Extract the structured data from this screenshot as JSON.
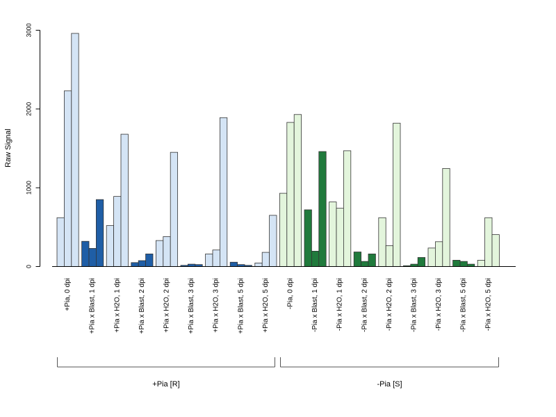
{
  "chart_data": {
    "type": "bar",
    "ylabel": "Raw Signal",
    "xlabel": "",
    "ylim": [
      0,
      3000
    ],
    "yticks": [
      "0",
      "1000",
      "2000",
      "3000"
    ],
    "grid": false,
    "bars_per_category": 3,
    "colors": {
      "r_light": "#d4e4f5",
      "r_dark": "#1f5ea6",
      "s_light": "#e3f5dc",
      "s_dark": "#207a3c",
      "outline": "#333333"
    },
    "categories": [
      {
        "label": "+Pia, 0 dpi",
        "values": [
          620,
          2230,
          2960
        ],
        "style": "r_light"
      },
      {
        "label": "+Pia x Blast, 1 dpi",
        "values": [
          320,
          230,
          850
        ],
        "style": "r_dark"
      },
      {
        "label": "+Pia x H2O, 1 dpi",
        "values": [
          520,
          890,
          1680
        ],
        "style": "r_light"
      },
      {
        "label": "+Pia x Blast, 2 dpi",
        "values": [
          50,
          75,
          160
        ],
        "style": "r_dark"
      },
      {
        "label": "+Pia x H2O, 2 dpi",
        "values": [
          330,
          380,
          1450
        ],
        "style": "r_light"
      },
      {
        "label": "+Pia x Blast, 3 dpi",
        "values": [
          15,
          30,
          25
        ],
        "style": "r_dark"
      },
      {
        "label": "+Pia x H2O, 3 dpi",
        "values": [
          160,
          210,
          1890
        ],
        "style": "r_light"
      },
      {
        "label": "+Pia x Blast, 5 dpi",
        "values": [
          55,
          25,
          15
        ],
        "style": "r_dark"
      },
      {
        "label": "+Pia x H2O, 5 dpi",
        "values": [
          45,
          180,
          650
        ],
        "style": "r_light"
      },
      {
        "label": "-Pia, 0 dpi",
        "values": [
          930,
          1830,
          1930
        ],
        "style": "s_light"
      },
      {
        "label": "-Pia x Blast, 1 dpi",
        "values": [
          720,
          195,
          1460
        ],
        "style": "s_dark"
      },
      {
        "label": "-Pia x H2O, 1 dpi",
        "values": [
          820,
          740,
          1470
        ],
        "style": "s_light"
      },
      {
        "label": "-Pia x Blast, 2 dpi",
        "values": [
          185,
          65,
          160
        ],
        "style": "s_dark"
      },
      {
        "label": "-Pia x H2O, 2 dpi",
        "values": [
          620,
          265,
          1820
        ],
        "style": "s_light"
      },
      {
        "label": "-Pia x Blast, 3 dpi",
        "values": [
          10,
          30,
          115
        ],
        "style": "s_dark"
      },
      {
        "label": "-Pia x H2O, 3 dpi",
        "values": [
          235,
          315,
          1245
        ],
        "style": "s_light"
      },
      {
        "label": "-Pia x Blast, 5 dpi",
        "values": [
          80,
          65,
          30
        ],
        "style": "s_dark"
      },
      {
        "label": "-Pia x H2O, 5 dpi",
        "values": [
          80,
          620,
          405
        ],
        "style": "s_light"
      }
    ],
    "groups": [
      {
        "label": "+Pia [R]",
        "first_category": 0,
        "last_category": 8
      },
      {
        "label": "-Pia [S]",
        "first_category": 9,
        "last_category": 17
      }
    ]
  }
}
